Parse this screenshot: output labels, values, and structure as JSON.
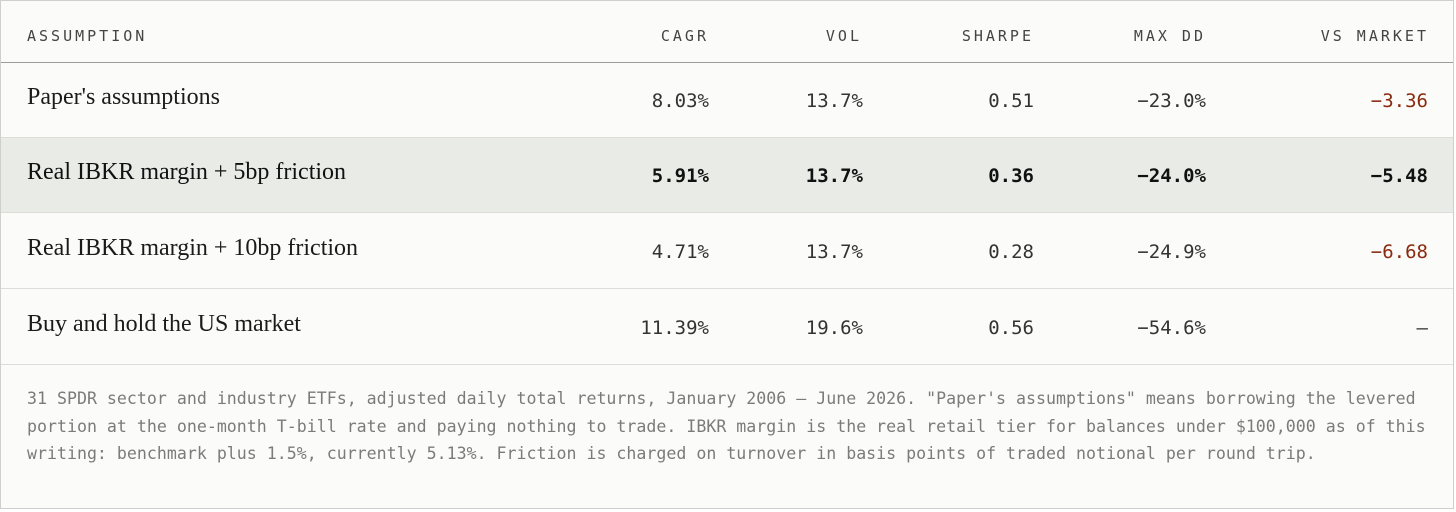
{
  "headers": {
    "assumption": "ASSUMPTION",
    "cagr": "CAGR",
    "vol": "VOL",
    "sharpe": "SHARPE",
    "max_dd": "MAX DD",
    "vs_market": "VS MARKET"
  },
  "rows": [
    {
      "assumption": "Paper's assumptions",
      "cagr": "8.03%",
      "vol": "13.7%",
      "sharpe": "0.51",
      "max_dd": "−23.0%",
      "vs_market": "−3.36"
    },
    {
      "assumption": "Real IBKR margin + 5bp friction",
      "cagr": "5.91%",
      "vol": "13.7%",
      "sharpe": "0.36",
      "max_dd": "−24.0%",
      "vs_market": "−5.48"
    },
    {
      "assumption": "Real IBKR margin + 10bp friction",
      "cagr": "4.71%",
      "vol": "13.7%",
      "sharpe": "0.28",
      "max_dd": "−24.9%",
      "vs_market": "−6.68"
    },
    {
      "assumption": "Buy and hold the US market",
      "cagr": "11.39%",
      "vol": "19.6%",
      "sharpe": "0.56",
      "max_dd": "−54.6%",
      "vs_market": "—"
    }
  ],
  "footnote": "31 SPDR sector and industry ETFs, adjusted daily total returns, January 2006 – June 2026. \"Paper's assumptions\" means borrowing the levered portion at the one-month T-bill rate and paying nothing to trade. IBKR margin is the real retail tier for balances under $100,000 as of this writing: benchmark plus 1.5%, currently 5.13%. Friction is charged on turnover in basis points of traded notional per round trip.",
  "colors": {
    "negative": "#8a2a0e",
    "highlight_row": "#e9ebe6"
  }
}
